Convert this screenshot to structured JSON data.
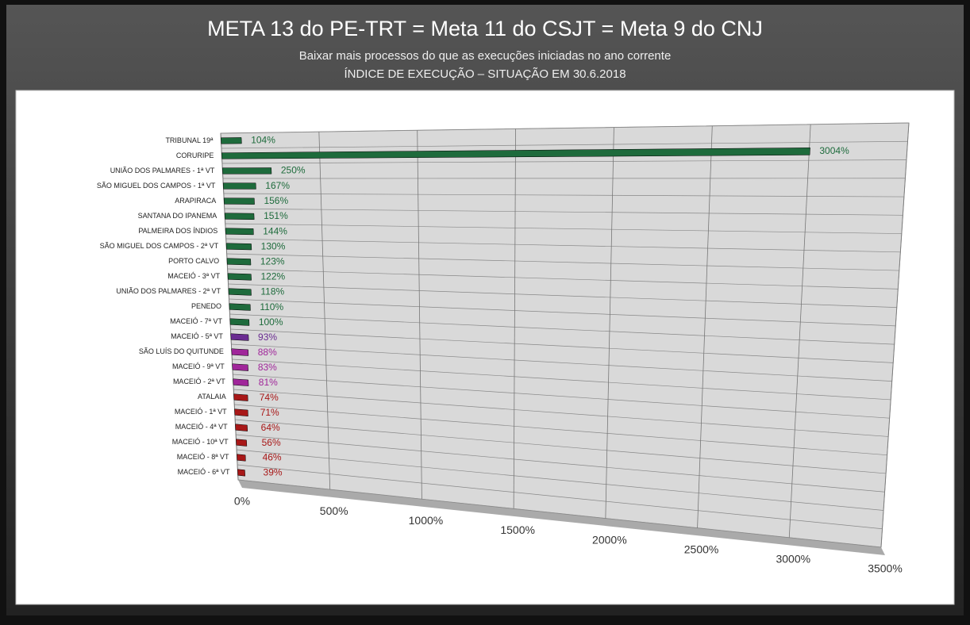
{
  "chart_data": {
    "type": "bar",
    "title": "META 13 do PE-TRT = Meta 11 do CSJT = Meta 9 do CNJ",
    "subtitle": [
      "Baixar mais processos do que as execuções iniciadas no ano corrente",
      "ÍNDICE DE EXECUÇÃO – SITUAÇÃO EM 30.6.2018"
    ],
    "categories": [
      "TRIBUNAL 19ª",
      "CORURIPE",
      "UNIÃO DOS PALMARES - 1ª VT",
      "SÃO MIGUEL DOS CAMPOS - 1ª VT",
      "ARAPIRACA",
      "SANTANA DO IPANEMA",
      "PALMEIRA DOS ÍNDIOS",
      "SÃO MIGUEL DOS CAMPOS - 2ª VT",
      "PORTO CALVO",
      "MACEIÓ - 3ª VT",
      "UNIÃO DOS PALMARES - 2ª VT",
      "PENEDO",
      "MACEIÓ - 7ª VT",
      "MACEIÓ - 5ª VT",
      "SÃO LUÍS DO QUITUNDE",
      "MACEIÓ - 9ª VT",
      "MACEIÓ - 2ª VT",
      "ATALAIA",
      "MACEIÓ - 1ª VT",
      "MACEIÓ - 4ª VT",
      "MACEIÓ - 10ª VT",
      "MACEIÓ - 8ª VT",
      "MACEIÓ - 6ª VT"
    ],
    "values": [
      104,
      3004,
      250,
      167,
      156,
      151,
      144,
      130,
      123,
      122,
      118,
      110,
      100,
      93,
      88,
      83,
      81,
      74,
      71,
      64,
      56,
      46,
      39
    ],
    "value_labels": [
      "104%",
      "3004%",
      "250%",
      "167%",
      "156%",
      "151%",
      "144%",
      "130%",
      "123%",
      "122%",
      "118%",
      "110%",
      "100%",
      "93%",
      "88%",
      "83%",
      "81%",
      "74%",
      "71%",
      "64%",
      "56%",
      "46%",
      "39%"
    ],
    "colors": [
      "#1e6b3c",
      "#1e6b3c",
      "#1e6b3c",
      "#1e6b3c",
      "#1e6b3c",
      "#1e6b3c",
      "#1e6b3c",
      "#1e6b3c",
      "#1e6b3c",
      "#1e6b3c",
      "#1e6b3c",
      "#1e6b3c",
      "#1e6b3c",
      "#6a2c91",
      "#a0269a",
      "#a0269a",
      "#a0269a",
      "#a81818",
      "#a81818",
      "#a81818",
      "#a81818",
      "#a81818",
      "#a81818"
    ],
    "xlim": [
      0,
      3500
    ],
    "xticks": [
      {
        "value": 0,
        "label": "0%"
      },
      {
        "value": 500,
        "label": "500%"
      },
      {
        "value": 1000,
        "label": "1000%"
      },
      {
        "value": 1500,
        "label": "1500%"
      },
      {
        "value": 2000,
        "label": "2000%"
      },
      {
        "value": 2500,
        "label": "2500%"
      },
      {
        "value": 3000,
        "label": "3000%"
      },
      {
        "value": 3500,
        "label": "3500%"
      }
    ],
    "grid": true
  }
}
